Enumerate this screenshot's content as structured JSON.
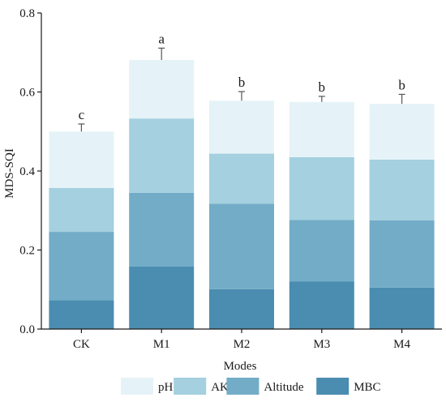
{
  "chart_data": {
    "type": "bar",
    "stacked": true,
    "categories": [
      "CK",
      "M1",
      "M2",
      "M3",
      "M4"
    ],
    "series": [
      {
        "name": "MBC",
        "color": "#4a8db0",
        "values": [
          0.073,
          0.158,
          0.101,
          0.12,
          0.105
        ]
      },
      {
        "name": "Altitude",
        "color": "#73acc7",
        "values": [
          0.173,
          0.187,
          0.216,
          0.156,
          0.17
        ]
      },
      {
        "name": "AK",
        "color": "#a4d0df",
        "values": [
          0.111,
          0.188,
          0.127,
          0.159,
          0.154
        ]
      },
      {
        "name": "pH",
        "color": "#e5f3f8",
        "values": [
          0.143,
          0.148,
          0.134,
          0.14,
          0.141
        ]
      }
    ],
    "totals": [
      0.5,
      0.681,
      0.578,
      0.575,
      0.57
    ],
    "error_bars": [
      0.019,
      0.03,
      0.023,
      0.014,
      0.024
    ],
    "significance_letters": [
      "c",
      "a",
      "b",
      "b",
      "b"
    ],
    "xlabel": "Modes",
    "ylabel": "MDS-SQI",
    "ylim": [
      0,
      0.8
    ],
    "yticks": [
      "0.0",
      "0.2",
      "0.4",
      "0.6",
      "0.8"
    ],
    "legend": {
      "placement": "bottom",
      "order": [
        "pH",
        "AK",
        "Altitude",
        "MBC"
      ]
    },
    "grid": false
  }
}
